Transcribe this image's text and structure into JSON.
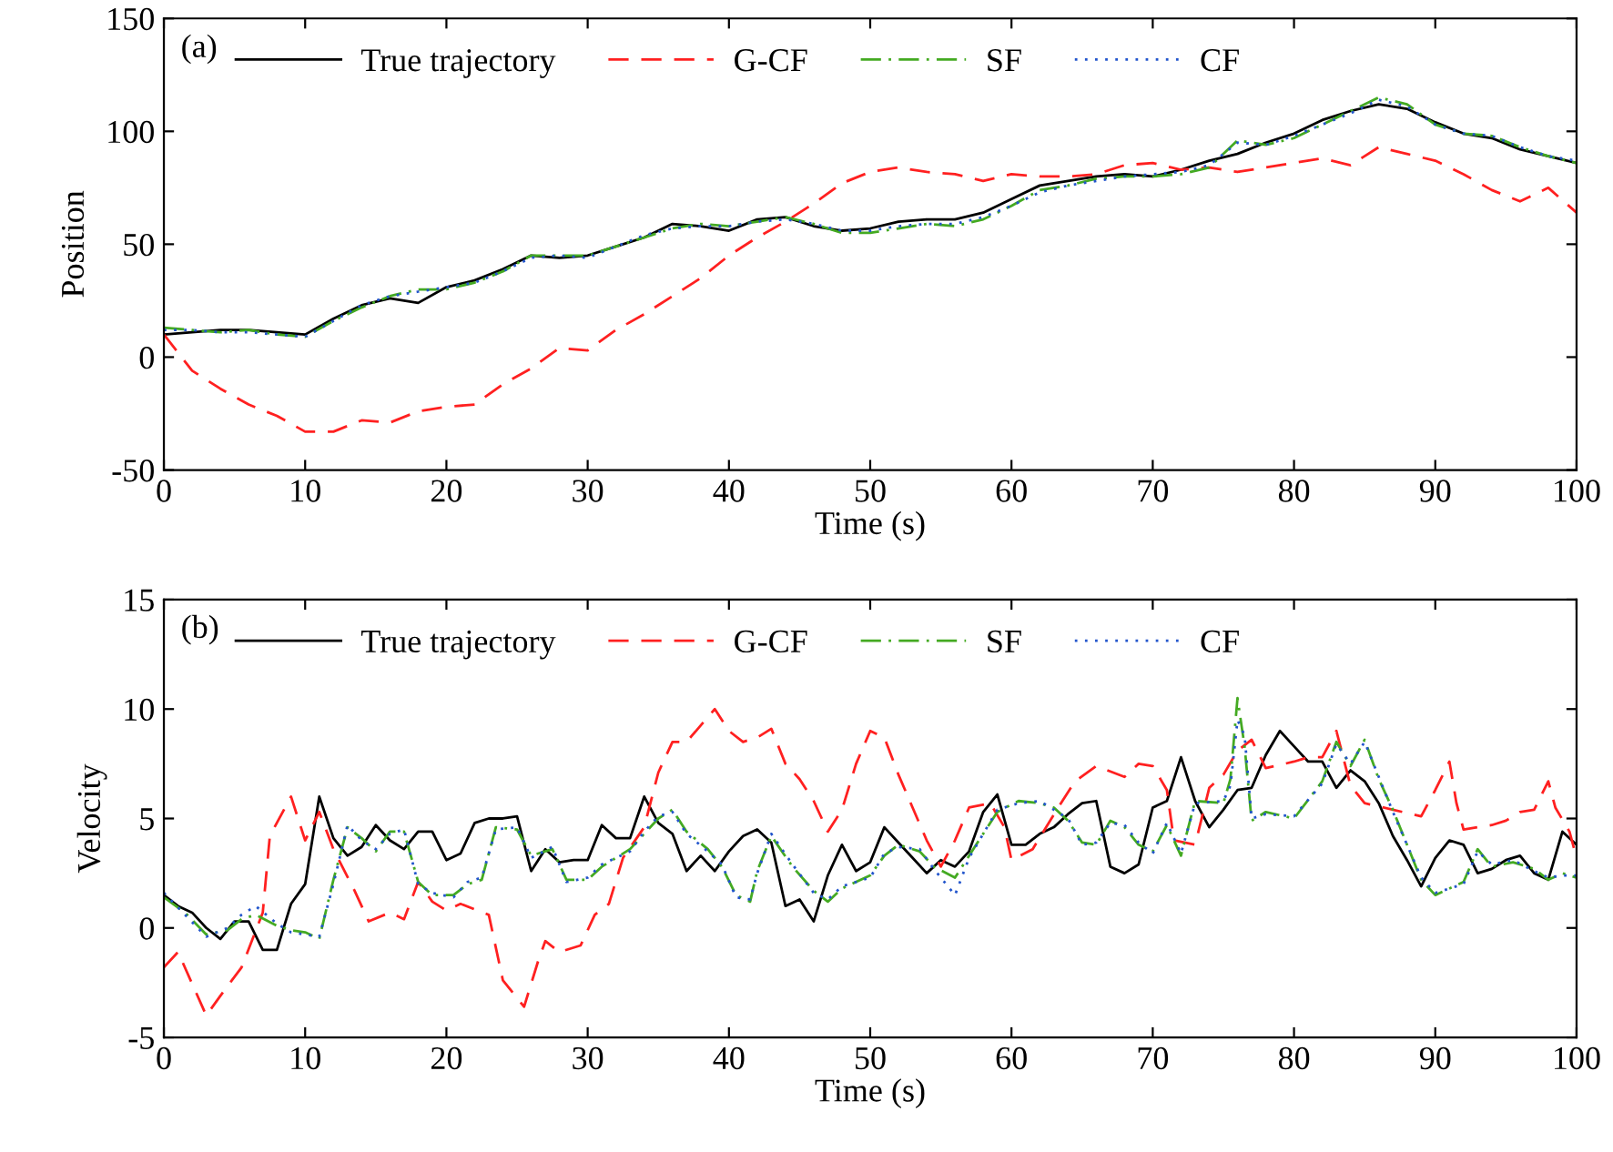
{
  "chart_data": [
    {
      "type": "line",
      "xlabel": "Time (s)",
      "ylabel": "Position",
      "annotations": [
        "(a)"
      ],
      "legend": "top left",
      "xlim": [
        0,
        100
      ],
      "ylim": [
        -50,
        150
      ],
      "xticks": [
        0,
        10,
        20,
        30,
        40,
        50,
        60,
        70,
        80,
        90,
        100
      ],
      "yticks": [
        -50,
        0,
        50,
        100,
        150
      ],
      "x": [
        0,
        2,
        4,
        6,
        8,
        10,
        12,
        14,
        16,
        18,
        20,
        22,
        24,
        26,
        28,
        30,
        32,
        34,
        36,
        38,
        40,
        42,
        44,
        46,
        48,
        50,
        52,
        54,
        56,
        58,
        60,
        62,
        64,
        66,
        68,
        70,
        72,
        74,
        76,
        78,
        80,
        82,
        84,
        86,
        88,
        90,
        92,
        94,
        96,
        98,
        100
      ],
      "series": [
        {
          "name": "True trajectory",
          "color": "#000000",
          "line_style": "solid",
          "values": [
            10,
            11,
            12,
            12,
            11,
            10,
            17,
            23,
            26,
            24,
            31,
            34,
            39,
            45,
            44,
            45,
            49,
            53,
            59,
            58,
            56,
            61,
            62,
            58,
            56,
            57,
            60,
            61,
            61,
            64,
            70,
            76,
            78,
            80,
            81,
            80,
            83,
            87,
            90,
            95,
            99,
            105,
            109,
            112,
            110,
            104,
            99,
            97,
            92,
            89,
            86
          ]
        },
        {
          "name": "G-CF",
          "color": "#ff2020",
          "line_style": "dashed",
          "values": [
            10,
            -6,
            -14,
            -21,
            -26,
            -33,
            -33,
            -28,
            -29,
            -24,
            -22,
            -21,
            -12,
            -5,
            4,
            3,
            12,
            19,
            27,
            35,
            45,
            53,
            60,
            68,
            77,
            82,
            84,
            82,
            81,
            78,
            81,
            80,
            80,
            81,
            85,
            86,
            83,
            84,
            82,
            84,
            86,
            88,
            85,
            93,
            90,
            87,
            81,
            74,
            69,
            75,
            64
          ]
        },
        {
          "name": "SF",
          "color": "#44aa22",
          "line_style": "dashdot",
          "values": [
            13,
            12,
            11,
            12,
            10,
            9,
            16,
            22,
            27,
            30,
            30,
            33,
            38,
            45,
            45,
            45,
            49,
            53,
            57,
            59,
            58,
            60,
            62,
            59,
            55,
            55,
            57,
            59,
            58,
            61,
            67,
            74,
            76,
            79,
            80,
            80,
            81,
            84,
            96,
            94,
            97,
            103,
            109,
            115,
            112,
            103,
            99,
            98,
            93,
            89,
            86
          ]
        },
        {
          "name": "CF",
          "color": "#2255cc",
          "line_style": "dotted",
          "values": [
            12,
            12,
            11,
            11,
            10,
            9,
            16,
            23,
            27,
            29,
            31,
            33,
            38,
            44,
            45,
            44,
            49,
            54,
            57,
            58,
            58,
            60,
            61,
            59,
            56,
            56,
            58,
            59,
            59,
            62,
            67,
            73,
            76,
            78,
            80,
            81,
            82,
            85,
            95,
            94,
            98,
            103,
            108,
            114,
            111,
            103,
            99,
            98,
            93,
            89,
            87
          ]
        }
      ]
    },
    {
      "type": "line",
      "xlabel": "Time (s)",
      "ylabel": "Velocity",
      "annotations": [
        "(b)"
      ],
      "legend": "top left",
      "xlim": [
        0,
        100
      ],
      "ylim": [
        -5,
        15
      ],
      "xticks": [
        0,
        10,
        20,
        30,
        40,
        50,
        60,
        70,
        80,
        90,
        100
      ],
      "yticks": [
        -5,
        0,
        5,
        10,
        15
      ],
      "series": [
        {
          "name": "True trajectory",
          "color": "#000000",
          "line_style": "solid",
          "x": [
            0,
            1,
            2,
            3,
            4,
            5,
            6,
            7,
            8,
            9,
            10,
            11,
            12,
            13,
            14,
            15,
            16,
            17,
            18,
            19,
            20,
            21,
            22,
            23,
            24,
            25,
            26,
            27,
            28,
            29,
            30,
            31,
            32,
            33,
            34,
            35,
            36,
            37,
            38,
            39,
            40,
            41,
            42,
            43,
            44,
            45,
            46,
            47,
            48,
            49,
            50,
            51,
            52,
            53,
            54,
            55,
            56,
            57,
            58,
            59,
            60,
            61,
            62,
            63,
            64,
            65,
            66,
            67,
            68,
            69,
            70,
            71,
            72,
            73,
            74,
            75,
            76,
            77,
            78,
            79,
            80,
            81,
            82,
            83,
            84,
            85,
            86,
            87,
            88,
            89,
            90,
            91,
            92,
            93,
            94,
            95,
            96,
            97,
            98,
            99,
            100
          ],
          "values": [
            1.5,
            1.0,
            0.7,
            0,
            -0.5,
            0.3,
            0.3,
            -1.0,
            -1.0,
            1.1,
            2.0,
            6.0,
            4.1,
            3.3,
            3.7,
            4.7,
            4.0,
            3.6,
            4.4,
            4.4,
            3.1,
            3.4,
            4.8,
            5.0,
            5.0,
            5.1,
            2.6,
            3.6,
            3.0,
            3.1,
            3.1,
            4.7,
            4.1,
            4.1,
            6.0,
            4.8,
            4.3,
            2.6,
            3.3,
            2.6,
            3.5,
            4.2,
            4.5,
            3.9,
            1.0,
            1.3,
            0.3,
            2.4,
            3.8,
            2.6,
            3.0,
            4.6,
            3.9,
            3.2,
            2.5,
            3.1,
            2.8,
            3.5,
            5.3,
            6.1,
            3.8,
            3.8,
            4.3,
            4.6,
            5.2,
            5.7,
            5.8,
            2.8,
            2.5,
            2.9,
            5.5,
            5.8,
            7.8,
            5.8,
            4.6,
            5.4,
            6.3,
            6.4,
            7.9,
            9.0,
            8.3,
            7.6,
            7.6,
            6.4,
            7.2,
            6.7,
            5.7,
            4.2,
            3.1,
            1.9,
            3.2,
            4.0,
            3.8,
            2.5,
            2.7,
            3.1,
            3.3,
            2.5,
            2.2,
            4.4,
            3.8
          ]
        },
        {
          "name": "G-CF",
          "color": "#ff2020",
          "line_style": "dashed",
          "x": [
            0,
            1,
            3,
            4,
            5.5,
            7,
            7.5,
            9,
            10,
            11,
            12,
            13.5,
            14.5,
            16,
            17,
            18,
            19,
            20,
            21,
            23,
            24,
            25.5,
            26.5,
            27,
            28,
            29.5,
            30.5,
            31.5,
            32.5,
            34,
            35,
            36,
            37,
            39,
            40,
            41,
            42,
            43,
            44,
            45,
            46,
            47,
            48,
            49,
            50,
            51,
            52,
            53,
            54,
            55,
            56,
            57,
            58.5,
            59.5,
            60,
            61.5,
            63.5,
            64.5,
            66,
            68,
            69,
            70,
            71,
            71.5,
            73,
            74,
            75,
            76,
            77,
            78,
            80,
            81,
            82,
            83,
            84,
            85,
            87,
            89,
            90,
            91,
            91.5,
            92,
            94,
            95,
            96,
            97,
            98,
            98.5,
            99.5,
            100
          ],
          "values": [
            -1.8,
            -1.1,
            -4.0,
            -3.1,
            -1.8,
            0.7,
            4.2,
            6.0,
            4.0,
            5.3,
            3.6,
            1.7,
            0.3,
            0.7,
            0.4,
            2.1,
            1.2,
            0.8,
            1.1,
            0.6,
            -2.4,
            -3.6,
            -1.5,
            -0.6,
            -1.1,
            -0.8,
            0.6,
            1.1,
            3.2,
            4.6,
            7.1,
            8.5,
            8.5,
            10.0,
            9.0,
            8.5,
            8.7,
            9.1,
            7.5,
            6.8,
            5.8,
            4.4,
            5.4,
            7.5,
            9.0,
            8.7,
            7.0,
            5.5,
            4.0,
            2.8,
            4.0,
            5.5,
            5.7,
            4.6,
            3.1,
            3.6,
            5.7,
            6.7,
            7.4,
            6.9,
            7.5,
            7.4,
            6.3,
            4.0,
            3.8,
            6.4,
            7.0,
            8.1,
            8.6,
            7.3,
            7.6,
            7.8,
            7.8,
            9.0,
            6.5,
            5.7,
            5.4,
            5.1,
            6.3,
            7.6,
            5.7,
            4.5,
            4.7,
            4.9,
            5.3,
            5.4,
            6.7,
            5.5,
            4.4,
            3.2
          ]
        },
        {
          "name": "SF",
          "color": "#44aa22",
          "line_style": "dashdot",
          "x": [
            0,
            1.5,
            3,
            4.5,
            5.5,
            6.5,
            8,
            9,
            10,
            11,
            12,
            13,
            14,
            15,
            16,
            17,
            18,
            19,
            20.5,
            21.5,
            22.5,
            23.5,
            25,
            26,
            27.5,
            28.5,
            30,
            31,
            33,
            34,
            35,
            36,
            37,
            38.5,
            39.5,
            40.5,
            41.5,
            42,
            43,
            44.5,
            46,
            47,
            48,
            50,
            51,
            52,
            53.5,
            54.5,
            56,
            57,
            59,
            60.5,
            62,
            63,
            64,
            65,
            66,
            67,
            68,
            69,
            70,
            71,
            72,
            73,
            75,
            75.5,
            76,
            76.5,
            77,
            78,
            80,
            82,
            83,
            84,
            85,
            86,
            87,
            89,
            90,
            92,
            93,
            94,
            95.5,
            97,
            98,
            99,
            100
          ],
          "values": [
            1.4,
            0.7,
            -0.3,
            -0.1,
            0.4,
            0.6,
            0.1,
            -0.1,
            -0.2,
            -0.5,
            2.2,
            4.6,
            4.1,
            3.5,
            4.4,
            4.4,
            2.1,
            1.5,
            1.5,
            2.0,
            2.2,
            4.6,
            4.5,
            3.3,
            3.6,
            2.2,
            2.2,
            2.8,
            3.6,
            4.3,
            5.0,
            5.4,
            4.4,
            3.6,
            2.8,
            1.5,
            1.2,
            2.6,
            4.2,
            2.8,
            1.7,
            1.2,
            1.8,
            2.4,
            3.3,
            3.8,
            3.5,
            2.8,
            2.3,
            3.3,
            5.3,
            5.8,
            5.7,
            5.5,
            4.9,
            3.9,
            3.8,
            4.9,
            4.6,
            3.8,
            3.5,
            4.7,
            3.3,
            5.8,
            5.7,
            6.8,
            10.5,
            8.3,
            4.9,
            5.3,
            5.0,
            6.7,
            8.5,
            7.4,
            8.6,
            6.8,
            5.4,
            2.2,
            1.5,
            2.1,
            3.6,
            2.8,
            3.0,
            2.7,
            2.2,
            2.5,
            2.3
          ]
        },
        {
          "name": "CF",
          "color": "#2255cc",
          "line_style": "dotted",
          "x": [
            0,
            1.5,
            3,
            4.5,
            5.5,
            6.5,
            8,
            9,
            10,
            11,
            12,
            13,
            14,
            15,
            16,
            17,
            18,
            19,
            20.5,
            21.5,
            22.5,
            23.5,
            25,
            26,
            27.5,
            28.5,
            30,
            31,
            33,
            34,
            35,
            36,
            37,
            38.5,
            39.5,
            40.5,
            41.5,
            42,
            43,
            44.5,
            46,
            47,
            48,
            50,
            51,
            52,
            53.5,
            54.5,
            56,
            57,
            59,
            60.5,
            62,
            63,
            64,
            65,
            66,
            67,
            68,
            69,
            70,
            71,
            72,
            73,
            75,
            75.5,
            76,
            76.5,
            77,
            78,
            80,
            82,
            83,
            84,
            85,
            86,
            87,
            89,
            90,
            92,
            93,
            94,
            95.5,
            97,
            98,
            99,
            100
          ],
          "values": [
            1.6,
            0.6,
            -0.4,
            0.0,
            0.6,
            1.0,
            0.2,
            -0.2,
            -0.3,
            -0.4,
            2.0,
            4.7,
            4.0,
            3.6,
            4.3,
            4.5,
            2.0,
            1.6,
            1.4,
            2.1,
            2.3,
            4.5,
            4.6,
            3.2,
            3.7,
            2.1,
            2.3,
            2.9,
            3.5,
            4.4,
            5.1,
            5.3,
            4.3,
            3.5,
            2.9,
            1.4,
            1.3,
            2.5,
            4.3,
            2.9,
            1.6,
            1.3,
            1.9,
            2.3,
            3.4,
            3.7,
            3.6,
            2.7,
            1.5,
            3.2,
            5.4,
            5.7,
            5.8,
            5.4,
            5.0,
            3.8,
            3.9,
            4.8,
            4.7,
            3.9,
            3.4,
            4.8,
            3.4,
            5.7,
            5.8,
            6.5,
            9.5,
            8.8,
            5.0,
            5.2,
            5.1,
            6.6,
            8.4,
            7.5,
            8.5,
            6.9,
            5.3,
            2.3,
            1.6,
            2.0,
            3.5,
            2.9,
            3.1,
            2.6,
            2.3,
            2.4,
            2.4
          ]
        }
      ]
    }
  ]
}
